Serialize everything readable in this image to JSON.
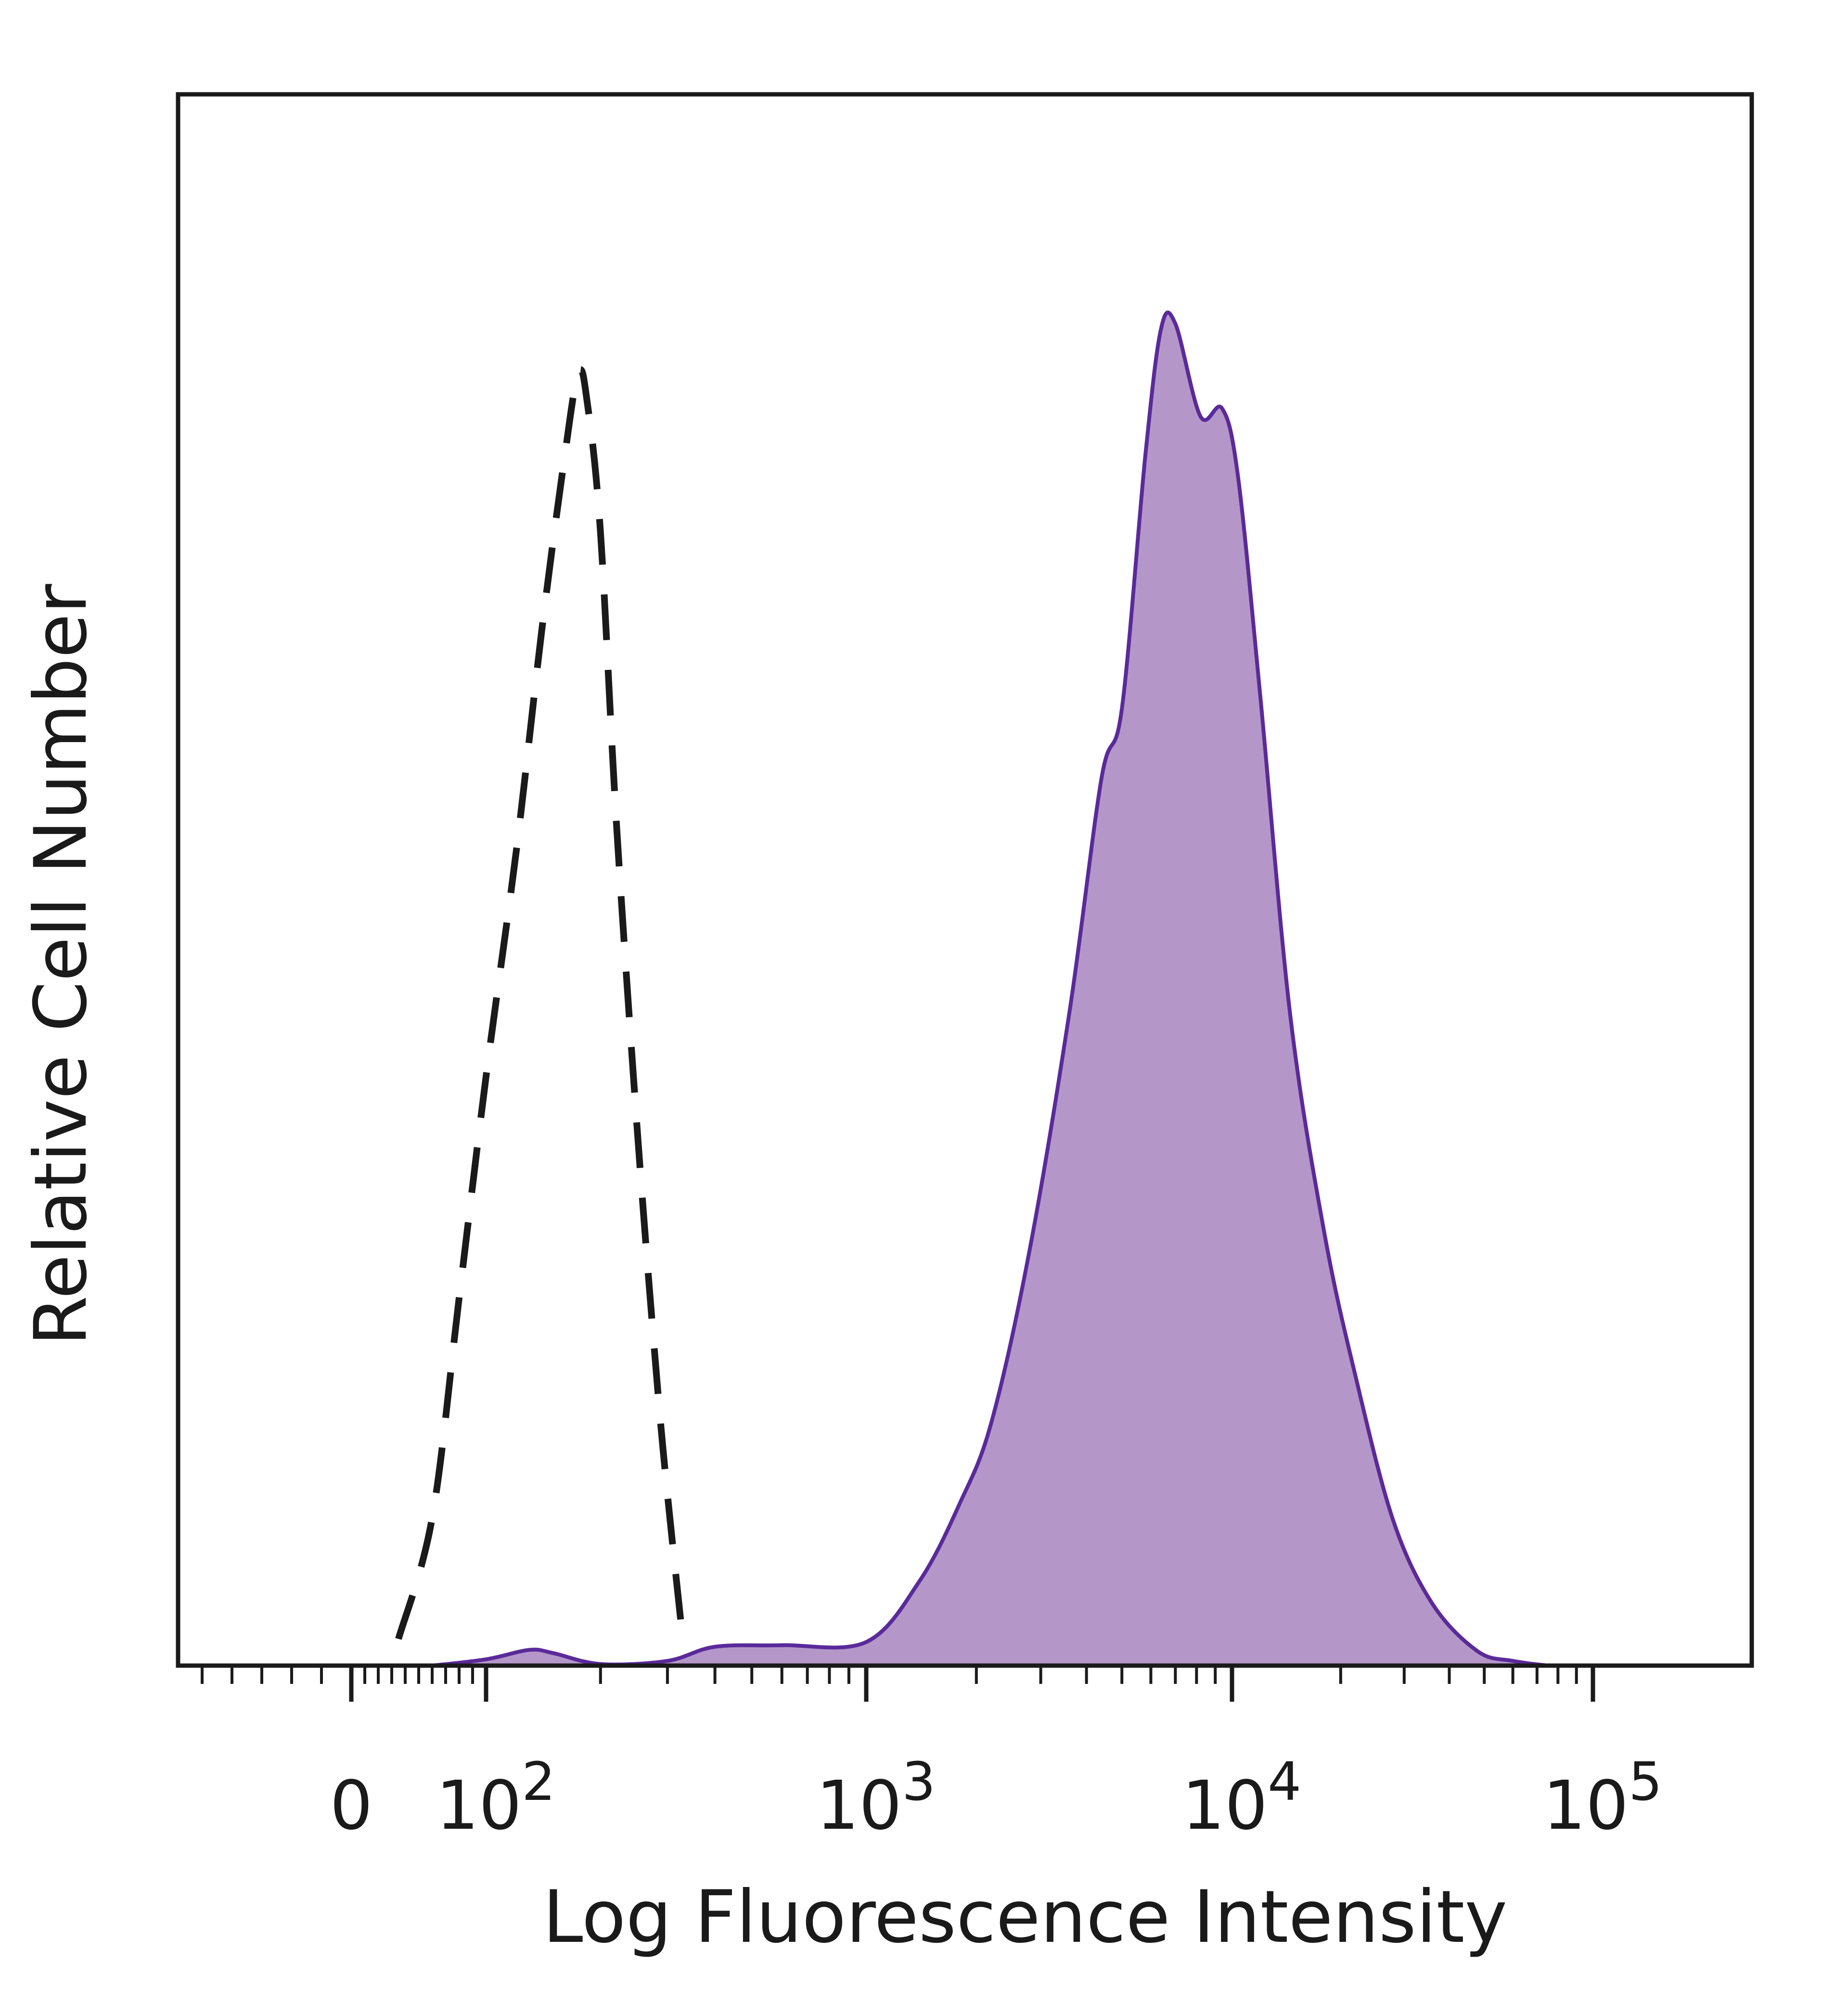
{
  "chart_data": {
    "type": "area",
    "title": "",
    "xlabel": "Log Fluorescence Intensity",
    "ylabel": "Relative Cell Number",
    "x_scale": "biexponential (linear near 0, logarithmic above 10^2)",
    "x_ticks": [
      {
        "value": 0,
        "base": "0",
        "exp": ""
      },
      {
        "value": 100,
        "base": "10",
        "exp": "2"
      },
      {
        "value": 1000,
        "base": "10",
        "exp": "3"
      },
      {
        "value": 10000,
        "base": "10",
        "exp": "4"
      },
      {
        "value": 100000,
        "base": "10",
        "exp": "5"
      }
    ],
    "y_ticks": [],
    "ylim": [
      0,
      100
    ],
    "grid": false,
    "legend": "none",
    "series": [
      {
        "style": "dashed",
        "color": "#1a1a1a",
        "fill": "none",
        "x": [
          35,
          60,
          80,
          100,
          120,
          140,
          160,
          175,
          185,
          200,
          220,
          250,
          280,
          300,
          330
        ],
        "y": [
          1.7,
          9.4,
          23.4,
          37.5,
          51.8,
          65.8,
          76.5,
          82.3,
          80.2,
          72.1,
          53.8,
          34.0,
          18.8,
          10.9,
          1.4
        ]
      },
      {
        "style": "solid",
        "color": "#5a2a9a",
        "fill": "#b497c8",
        "x": [
          60,
          100,
          130,
          150,
          200,
          300,
          400,
          600,
          1000,
          1400,
          1800,
          2200,
          2800,
          3600,
          4400,
          5000,
          5800,
          6400,
          7000,
          8200,
          9400,
          10400,
          12000,
          14500,
          18000,
          22000,
          28000,
          36000,
          48000,
          60000,
          75000
        ],
        "y": [
          0.0,
          0.4,
          1.0,
          0.8,
          0.1,
          0.3,
          1.2,
          1.3,
          1.5,
          5.4,
          10.3,
          15.5,
          26.5,
          41.7,
          56.5,
          60.9,
          77.1,
          85.1,
          85.4,
          79.5,
          80.0,
          75.6,
          61.5,
          41.4,
          27.6,
          18.4,
          9.2,
          3.9,
          0.9,
          0.3,
          0.0
        ]
      }
    ]
  }
}
